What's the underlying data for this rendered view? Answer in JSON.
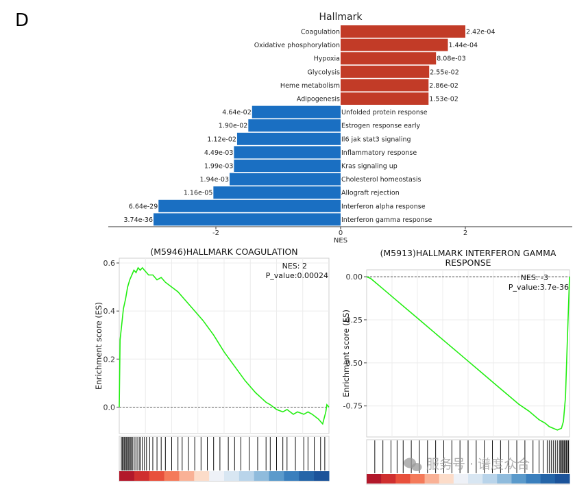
{
  "panel_label": "D",
  "watermark": "服务号 · 谱度众合",
  "chart_data": [
    {
      "type": "bar",
      "orientation": "horizontal",
      "title": "Hallmark",
      "xlabel": "NES",
      "xlim": [
        -3.7,
        3.7
      ],
      "xticks": [
        "-2",
        "0",
        "2"
      ],
      "xtick_values": [
        -2,
        0,
        2
      ],
      "colors": {
        "positive": "#c23b27",
        "negative": "#1a6fc2"
      },
      "bars": [
        {
          "term": "Coagulation",
          "nes": 2.0,
          "pvalue": "2.42e-04"
        },
        {
          "term": "Oxidative phosphorylation",
          "nes": 1.72,
          "pvalue": "1.44e-04"
        },
        {
          "term": "Hypoxia",
          "nes": 1.53,
          "pvalue": "8.08e-03"
        },
        {
          "term": "Glycolysis",
          "nes": 1.42,
          "pvalue": "2.55e-02"
        },
        {
          "term": "Heme metabolism",
          "nes": 1.41,
          "pvalue": "2.86e-02"
        },
        {
          "term": "Adipogenesis",
          "nes": 1.41,
          "pvalue": "1.53e-02"
        },
        {
          "term": "Unfolded protein response",
          "nes": -1.42,
          "pvalue": "4.64e-02"
        },
        {
          "term": "Estrogen response early",
          "nes": -1.48,
          "pvalue": "1.90e-02"
        },
        {
          "term": "Il6 jak stat3 signaling",
          "nes": -1.66,
          "pvalue": "1.12e-02"
        },
        {
          "term": "Inflammatory response",
          "nes": -1.71,
          "pvalue": "4.49e-03"
        },
        {
          "term": "Kras signaling up",
          "nes": -1.71,
          "pvalue": "1.99e-03"
        },
        {
          "term": "Cholesterol homeostasis",
          "nes": -1.78,
          "pvalue": "1.94e-03"
        },
        {
          "term": "Allograft rejection",
          "nes": -2.04,
          "pvalue": "1.16e-05"
        },
        {
          "term": "Interferon alpha response",
          "nes": -2.92,
          "pvalue": "6.64e-29"
        },
        {
          "term": "Interferon gamma response",
          "nes": -3.0,
          "pvalue": "3.74e-36"
        }
      ]
    },
    {
      "type": "line",
      "title": "(M5946)HALLMARK COAGULATION",
      "ylabel": "Enrichment score (ES)",
      "ylim": [
        -0.11,
        0.62
      ],
      "yticks": [
        "0.0",
        "0.2",
        "0.4",
        "0.6"
      ],
      "ytick_values": [
        0.0,
        0.2,
        0.4,
        0.6
      ],
      "nes_text": "NES:  2",
      "pvalue_text": "P_value:0.00024",
      "line_color": "#22ee11",
      "curve_x": [
        0,
        0.004,
        0.01,
        0.02,
        0.03,
        0.04,
        0.05,
        0.06,
        0.07,
        0.08,
        0.09,
        0.1,
        0.11,
        0.12,
        0.14,
        0.16,
        0.18,
        0.2,
        0.22,
        0.25,
        0.28,
        0.3,
        0.35,
        0.4,
        0.45,
        0.5,
        0.55,
        0.6,
        0.65,
        0.7,
        0.72,
        0.75,
        0.78,
        0.8,
        0.83,
        0.85,
        0.88,
        0.9,
        0.92,
        0.95,
        0.97,
        0.985,
        0.99,
        1.0
      ],
      "curve_y": [
        0.0,
        0.28,
        0.33,
        0.41,
        0.45,
        0.5,
        0.53,
        0.55,
        0.57,
        0.56,
        0.58,
        0.57,
        0.58,
        0.57,
        0.55,
        0.55,
        0.53,
        0.54,
        0.52,
        0.5,
        0.48,
        0.46,
        0.41,
        0.36,
        0.3,
        0.23,
        0.17,
        0.11,
        0.06,
        0.02,
        0.01,
        -0.01,
        -0.02,
        -0.01,
        -0.03,
        -0.02,
        -0.03,
        -0.02,
        -0.03,
        -0.05,
        -0.07,
        -0.02,
        0.01,
        0.0
      ],
      "rug_positions": [
        0.01,
        0.015,
        0.02,
        0.025,
        0.03,
        0.035,
        0.04,
        0.045,
        0.05,
        0.055,
        0.06,
        0.065,
        0.075,
        0.085,
        0.095,
        0.1,
        0.11,
        0.12,
        0.13,
        0.145,
        0.16,
        0.18,
        0.2,
        0.22,
        0.25,
        0.28,
        0.3,
        0.33,
        0.36,
        0.39,
        0.42,
        0.45,
        0.48,
        0.52,
        0.55,
        0.58,
        0.62,
        0.66,
        0.7,
        0.72,
        0.75,
        0.78,
        0.8,
        0.84,
        0.88,
        0.9,
        0.93,
        0.96,
        0.98
      ],
      "heat_colors": [
        "#b2182b",
        "#cf2f2f",
        "#e8503c",
        "#f47a5a",
        "#f9b196",
        "#fcdcc9",
        "#eef1f7",
        "#d8e6f2",
        "#b9d4ea",
        "#8fbbdc",
        "#5b9acb",
        "#3a7fbd",
        "#2565a8",
        "#1b539a"
      ]
    },
    {
      "type": "line",
      "title": "(M5913)HALLMARK INTERFERON GAMMA RESPONSE",
      "title_lines": [
        "(M5913)HALLMARK INTERFERON GAMMA",
        "RESPONSE"
      ],
      "ylabel": "Enrichment score (ES)",
      "ylim": [
        -0.93,
        0.04
      ],
      "yticks": [
        "0.00",
        "-0.25",
        "-0.50",
        "-0.75"
      ],
      "ytick_values": [
        0.0,
        -0.25,
        -0.5,
        -0.75
      ],
      "nes_text": "NES: -3",
      "pvalue_text": "P_value:3.7e-36",
      "line_color": "#22ee11",
      "curve_x": [
        0,
        0.02,
        0.05,
        0.1,
        0.15,
        0.2,
        0.25,
        0.3,
        0.35,
        0.4,
        0.45,
        0.5,
        0.55,
        0.6,
        0.65,
        0.7,
        0.75,
        0.8,
        0.85,
        0.88,
        0.9,
        0.92,
        0.94,
        0.96,
        0.97,
        0.98,
        0.99,
        1.0
      ],
      "curve_y": [
        0.0,
        -0.01,
        -0.04,
        -0.09,
        -0.14,
        -0.19,
        -0.24,
        -0.29,
        -0.34,
        -0.39,
        -0.44,
        -0.49,
        -0.54,
        -0.59,
        -0.64,
        -0.69,
        -0.74,
        -0.78,
        -0.83,
        -0.85,
        -0.87,
        -0.88,
        -0.89,
        -0.88,
        -0.84,
        -0.7,
        -0.35,
        0.0
      ],
      "rug_positions": [
        0.04,
        0.08,
        0.12,
        0.15,
        0.18,
        0.22,
        0.26,
        0.3,
        0.34,
        0.38,
        0.42,
        0.46,
        0.5,
        0.54,
        0.58,
        0.62,
        0.66,
        0.7,
        0.74,
        0.78,
        0.82,
        0.85,
        0.87,
        0.89,
        0.9,
        0.91,
        0.92,
        0.93,
        0.94,
        0.95,
        0.955,
        0.96,
        0.965,
        0.97,
        0.975,
        0.98,
        0.985,
        0.99,
        0.995
      ],
      "heat_colors": [
        "#b2182b",
        "#cf2f2f",
        "#e8503c",
        "#f47a5a",
        "#f9b196",
        "#fcdcc9",
        "#eef1f7",
        "#d8e6f2",
        "#b9d4ea",
        "#8fbbdc",
        "#5b9acb",
        "#3a7fbd",
        "#2565a8",
        "#1b539a"
      ]
    }
  ]
}
